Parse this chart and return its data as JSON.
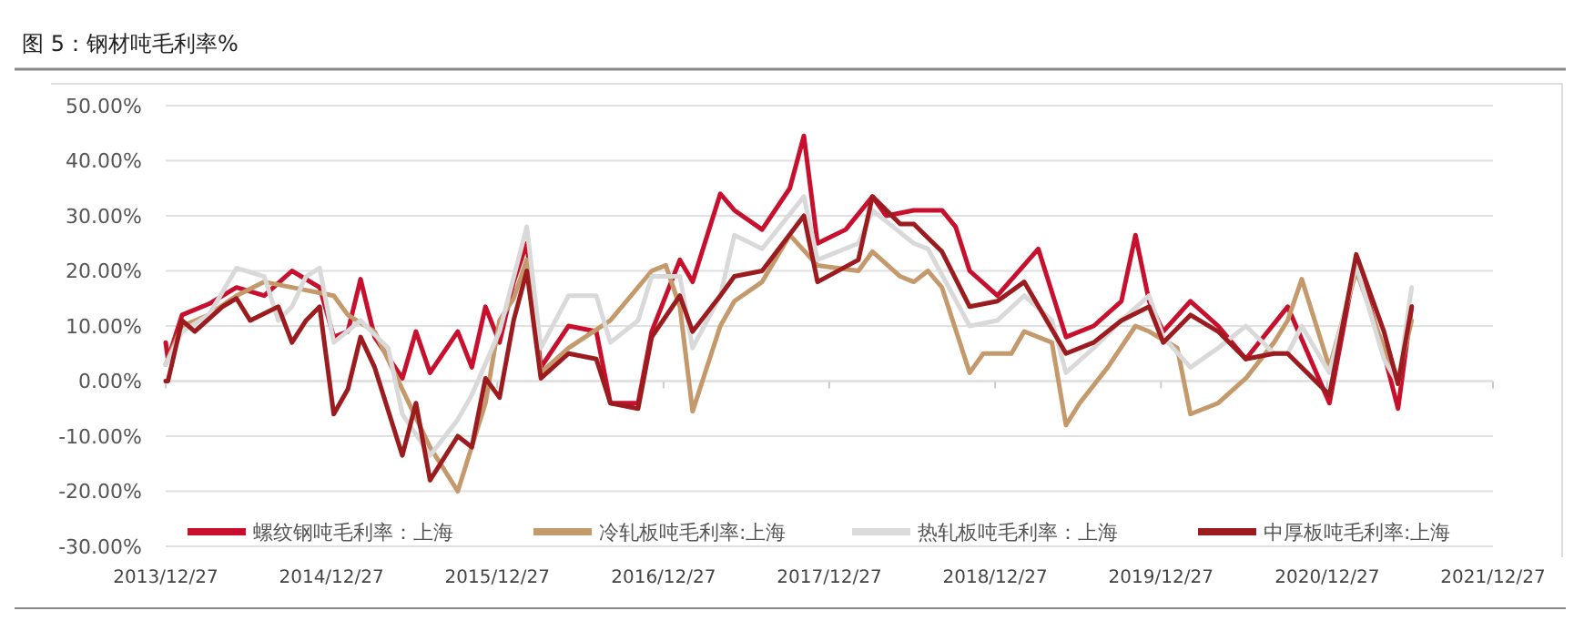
{
  "chart_data": {
    "type": "line",
    "title": "图 5：钢材吨毛利率%",
    "xlim": [
      "2013-12-27",
      "2021-12-27"
    ],
    "xticks": [
      {
        "value": "2013-12-27",
        "label": "2013/12/27"
      },
      {
        "value": "2014-12-27",
        "label": "2014/12/27"
      },
      {
        "value": "2015-12-27",
        "label": "2015/12/27"
      },
      {
        "value": "2016-12-27",
        "label": "2016/12/27"
      },
      {
        "value": "2017-12-27",
        "label": "2017/12/27"
      },
      {
        "value": "2018-12-27",
        "label": "2018/12/27"
      },
      {
        "value": "2019-12-27",
        "label": "2019/12/27"
      },
      {
        "value": "2020-12-27",
        "label": "2020/12/27"
      },
      {
        "value": "2021-12-27",
        "label": "2021/12/27"
      }
    ],
    "ylim": [
      -30,
      50
    ],
    "yticks": [
      {
        "value": -30,
        "label": "-30.00%"
      },
      {
        "value": -20,
        "label": "-20.00%"
      },
      {
        "value": -10,
        "label": "-10.00%"
      },
      {
        "value": 0,
        "label": "0.00%"
      },
      {
        "value": 10,
        "label": "10.00%"
      },
      {
        "value": 20,
        "label": "20.00%"
      },
      {
        "value": 30,
        "label": "30.00%"
      },
      {
        "value": 40,
        "label": "40.00%"
      },
      {
        "value": 50,
        "label": "50.00%"
      }
    ],
    "grid": "y",
    "legend": "bottom",
    "line_style": "solid",
    "marker": "none",
    "series": [
      {
        "name": "螺纹钢吨毛利率：上海",
        "color": "#c8102e",
        "x": [
          "2013-12-27",
          "2014-01",
          "2014-02",
          "2014-04",
          "2014-06",
          "2014-08",
          "2014-10",
          "2014-12",
          "2015-01",
          "2015-02",
          "2015-03",
          "2015-04",
          "2015-06",
          "2015-07",
          "2015-08",
          "2015-10",
          "2015-11",
          "2015-12",
          "2016-01",
          "2016-02",
          "2016-03",
          "2016-04",
          "2016-06",
          "2016-08",
          "2016-09",
          "2016-11",
          "2016-12",
          "2017-02",
          "2017-03",
          "2017-05",
          "2017-06",
          "2017-08",
          "2017-10",
          "2017-11",
          "2017-12",
          "2018-02",
          "2018-04",
          "2018-05",
          "2018-07",
          "2018-09",
          "2018-10",
          "2018-11",
          "2019-01",
          "2019-04",
          "2019-06",
          "2019-08",
          "2019-10",
          "2019-11",
          "2019-12",
          "2020-01",
          "2020-03",
          "2020-05",
          "2020-07",
          "2020-10",
          "2021-01",
          "2021-03",
          "2021-05",
          "2021-06",
          "2021-07"
        ],
        "values": [
          7,
          4,
          12,
          14,
          17,
          15.5,
          20,
          17,
          8,
          9,
          18.5,
          8,
          0.5,
          9,
          1.5,
          9,
          2.5,
          13.5,
          7,
          18,
          25,
          2.5,
          10,
          9,
          -4,
          -4,
          9,
          22,
          18,
          34,
          31,
          27.5,
          35,
          44.5,
          25,
          27.5,
          33.5,
          30,
          31,
          31,
          28,
          20,
          15.5,
          24,
          8,
          10,
          14.5,
          26.5,
          14.5,
          9,
          14.5,
          10,
          4,
          13.5,
          -4,
          22,
          5,
          -5,
          13.5
        ]
      },
      {
        "name": "冷轧板吨毛利率:上海",
        "color": "#c49a6c",
        "x": [
          "2013-12-27",
          "2014-02",
          "2014-04",
          "2014-06",
          "2014-08",
          "2014-10",
          "2015-01",
          "2015-02",
          "2015-04",
          "2015-06",
          "2015-08",
          "2015-10",
          "2015-12",
          "2016-01",
          "2016-02",
          "2016-03",
          "2016-04",
          "2016-06",
          "2016-09",
          "2016-12",
          "2017-01",
          "2017-02",
          "2017-03",
          "2017-05",
          "2017-06",
          "2017-08",
          "2017-10",
          "2017-12",
          "2018-03",
          "2018-04",
          "2018-06",
          "2018-07",
          "2018-08",
          "2018-09",
          "2018-11",
          "2018-12",
          "2019-02",
          "2019-03",
          "2019-05",
          "2019-06",
          "2019-07",
          "2019-09",
          "2019-11",
          "2019-12",
          "2020-02",
          "2020-03",
          "2020-05",
          "2020-07",
          "2020-09",
          "2020-10",
          "2020-11",
          "2021-01",
          "2021-03",
          "2021-05",
          "2021-06",
          "2021-07"
        ],
        "values": [
          3,
          10,
          12,
          15.5,
          18,
          17,
          15.5,
          12,
          9,
          -1.5,
          -12,
          -20,
          -4,
          11,
          15,
          22,
          1.5,
          6,
          11,
          20,
          21,
          13.5,
          -5.5,
          10,
          14.5,
          18,
          26.5,
          21,
          20,
          23.5,
          19,
          18,
          20,
          17,
          1.5,
          5,
          5,
          9,
          7,
          -8,
          -4,
          2.5,
          10,
          9,
          6,
          -6,
          -4,
          0.5,
          7,
          11,
          18.5,
          2.5,
          20,
          6,
          0.5,
          11
        ]
      },
      {
        "name": "热轧板吨毛利率：上海",
        "color": "#d9d9d9",
        "x": [
          "2013-12-27",
          "2014-02",
          "2014-04",
          "2014-06",
          "2014-08",
          "2014-09",
          "2014-10",
          "2014-11",
          "2014-12",
          "2015-01",
          "2015-03",
          "2015-05",
          "2015-06",
          "2015-08",
          "2015-10",
          "2015-11",
          "2016-01",
          "2016-03",
          "2016-04",
          "2016-06",
          "2016-08",
          "2016-09",
          "2016-11",
          "2016-12",
          "2017-02",
          "2017-03",
          "2017-05",
          "2017-06",
          "2017-08",
          "2017-11",
          "2017-12",
          "2018-03",
          "2018-04",
          "2018-07",
          "2018-08",
          "2018-11",
          "2019-01",
          "2019-03",
          "2019-05",
          "2019-06",
          "2019-08",
          "2019-10",
          "2019-12",
          "2020-01",
          "2020-03",
          "2020-05",
          "2020-07",
          "2020-09",
          "2020-10",
          "2020-11",
          "2021-01",
          "2021-03",
          "2021-05",
          "2021-06",
          "2021-07"
        ],
        "values": [
          3,
          9,
          12,
          20.5,
          19,
          11,
          13.5,
          19,
          20.5,
          7,
          11,
          6,
          -6,
          -13.5,
          -7,
          -2.5,
          9,
          28,
          6,
          15.5,
          15.5,
          7,
          11,
          19,
          19,
          6,
          15.5,
          26.5,
          24,
          33.5,
          22,
          25,
          31,
          25,
          24,
          10,
          11,
          15.5,
          11,
          1.5,
          6,
          11,
          15.5,
          8,
          2.5,
          6,
          10,
          5,
          5,
          10,
          1.5,
          21,
          4,
          -0.5,
          17
        ]
      },
      {
        "name": "中厚板吨毛利率:上海",
        "color": "#9b1b1e",
        "x": [
          "2013-12-27",
          "2014-01",
          "2014-02",
          "2014-03",
          "2014-05",
          "2014-06",
          "2014-07",
          "2014-09",
          "2014-10",
          "2014-11",
          "2014-12",
          "2015-01",
          "2015-02",
          "2015-03",
          "2015-04",
          "2015-06",
          "2015-07",
          "2015-08",
          "2015-10",
          "2015-11",
          "2015-12",
          "2016-01",
          "2016-02",
          "2016-03",
          "2016-04",
          "2016-06",
          "2016-08",
          "2016-09",
          "2016-11",
          "2016-12",
          "2017-02",
          "2017-03",
          "2017-05",
          "2017-06",
          "2017-08",
          "2017-11",
          "2017-12",
          "2018-03",
          "2018-04",
          "2018-06",
          "2018-07",
          "2018-09",
          "2018-11",
          "2019-01",
          "2019-03",
          "2019-06",
          "2019-08",
          "2019-10",
          "2019-12",
          "2020-01",
          "2020-03",
          "2020-05",
          "2020-07",
          "2020-09",
          "2020-10",
          "2021-01",
          "2021-03",
          "2021-05",
          "2021-06",
          "2021-07"
        ],
        "values": [
          0,
          0,
          11,
          9,
          13.5,
          15,
          11,
          13.5,
          7,
          11,
          13.5,
          -6,
          -1.5,
          8,
          2.5,
          -13.5,
          -4,
          -18,
          -10,
          -12,
          0.5,
          -3,
          11,
          20,
          0.5,
          5,
          4,
          -4,
          -5,
          8,
          15.5,
          9,
          15.5,
          19,
          20,
          30,
          18,
          22,
          33.5,
          28.5,
          28.5,
          23.5,
          13.5,
          14.5,
          18,
          5,
          7,
          11,
          13.5,
          7,
          12,
          9,
          4,
          5,
          5,
          -2.5,
          23,
          9,
          -0.5,
          13.5
        ]
      }
    ]
  }
}
